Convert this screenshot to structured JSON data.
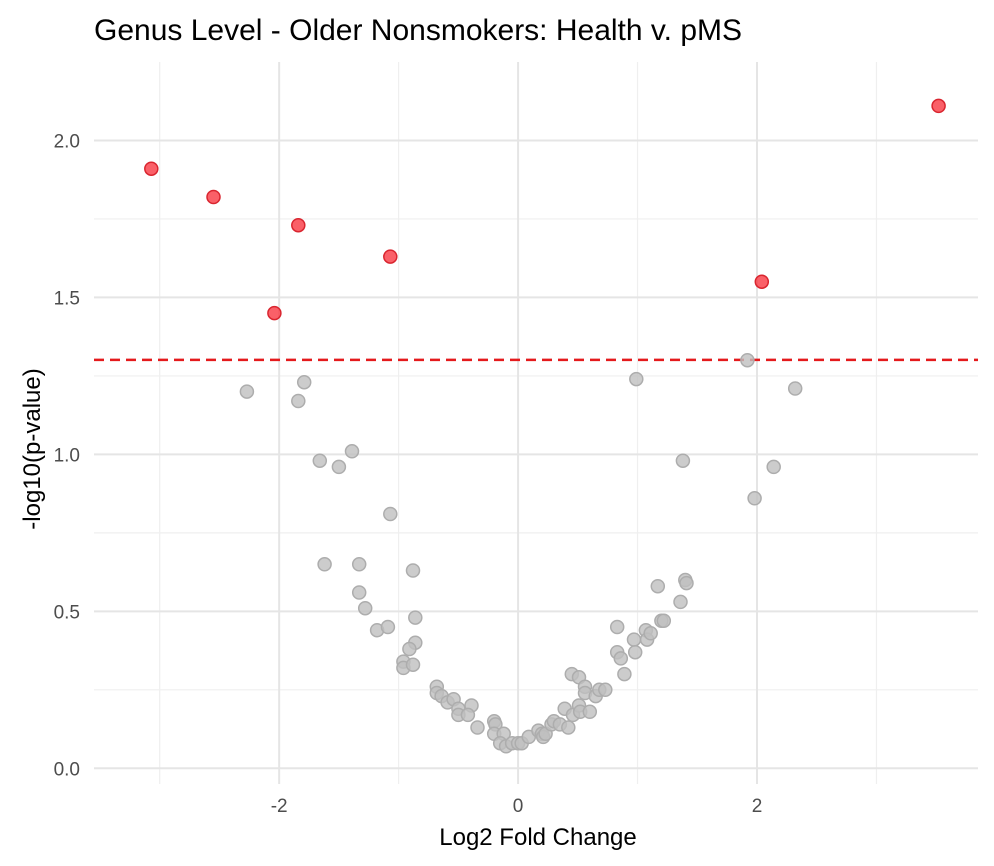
{
  "chart_data": {
    "type": "scatter",
    "title": "Genus Level - Older Nonsmokers: Health v. pMS",
    "xlabel": "Log2 Fold Change",
    "ylabel": "-log10(p-value)",
    "xlim": [
      -3.55,
      3.85
    ],
    "ylim": [
      -0.05,
      2.25
    ],
    "x_ticks": [
      -2,
      0,
      2
    ],
    "x_tick_labels": [
      "-2",
      "0",
      "2"
    ],
    "x_minor": [
      -3,
      -1,
      1,
      3
    ],
    "y_ticks": [
      0.0,
      0.5,
      1.0,
      1.5,
      2.0
    ],
    "y_tick_labels": [
      "0.0",
      "0.5",
      "1.0",
      "1.5",
      "2.0"
    ],
    "y_minor": [
      0.25,
      0.75,
      1.25,
      1.75
    ],
    "grid": true,
    "threshold": {
      "y": 1.301,
      "color": "#e41a1c",
      "style": "dashed"
    },
    "colors": {
      "significant": "#f8333d",
      "significant_stroke": "#d9252f",
      "nonsignificant": "#bfbfbf",
      "nonsignificant_stroke": "#adadad"
    },
    "series": [
      {
        "color": "#f8333d",
        "points": [
          [
            -3.07,
            1.91
          ],
          [
            -2.55,
            1.82
          ],
          [
            -2.04,
            1.45
          ],
          [
            -1.84,
            1.73
          ],
          [
            -1.07,
            1.63
          ],
          [
            2.04,
            1.55
          ],
          [
            3.52,
            2.11
          ]
        ]
      },
      {
        "color": "#bfbfbf",
        "points": [
          [
            -2.27,
            1.2
          ],
          [
            -1.79,
            1.23
          ],
          [
            -1.84,
            1.17
          ],
          [
            -1.66,
            0.98
          ],
          [
            -1.39,
            1.01
          ],
          [
            -1.5,
            0.96
          ],
          [
            -1.07,
            0.81
          ],
          [
            -1.62,
            0.65
          ],
          [
            -1.33,
            0.65
          ],
          [
            -1.33,
            0.56
          ],
          [
            -0.88,
            0.63
          ],
          [
            -1.28,
            0.51
          ],
          [
            -0.86,
            0.48
          ],
          [
            -1.18,
            0.44
          ],
          [
            -1.09,
            0.45
          ],
          [
            -0.86,
            0.4
          ],
          [
            -0.91,
            0.38
          ],
          [
            -0.96,
            0.34
          ],
          [
            -0.96,
            0.32
          ],
          [
            -0.88,
            0.33
          ],
          [
            -0.68,
            0.26
          ],
          [
            -0.68,
            0.24
          ],
          [
            -0.64,
            0.23
          ],
          [
            -0.59,
            0.21
          ],
          [
            -0.54,
            0.22
          ],
          [
            -0.5,
            0.19
          ],
          [
            -0.39,
            0.2
          ],
          [
            -0.5,
            0.17
          ],
          [
            -0.42,
            0.17
          ],
          [
            -0.34,
            0.13
          ],
          [
            -0.2,
            0.15
          ],
          [
            -0.19,
            0.14
          ],
          [
            -0.2,
            0.11
          ],
          [
            -0.12,
            0.11
          ],
          [
            -0.15,
            0.08
          ],
          [
            -0.1,
            0.07
          ],
          [
            -0.05,
            0.08
          ],
          [
            0.0,
            0.08
          ],
          [
            0.03,
            0.08
          ],
          [
            0.09,
            0.1
          ],
          [
            0.17,
            0.12
          ],
          [
            0.2,
            0.11
          ],
          [
            0.21,
            0.1
          ],
          [
            0.23,
            0.11
          ],
          [
            0.28,
            0.14
          ],
          [
            0.3,
            0.15
          ],
          [
            0.35,
            0.14
          ],
          [
            0.39,
            0.19
          ],
          [
            0.42,
            0.13
          ],
          [
            0.45,
            0.3
          ],
          [
            0.46,
            0.17
          ],
          [
            0.51,
            0.29
          ],
          [
            0.51,
            0.2
          ],
          [
            0.52,
            0.18
          ],
          [
            0.56,
            0.26
          ],
          [
            0.56,
            0.24
          ],
          [
            0.6,
            0.18
          ],
          [
            0.65,
            0.23
          ],
          [
            0.68,
            0.25
          ],
          [
            0.73,
            0.25
          ],
          [
            0.83,
            0.37
          ],
          [
            0.83,
            0.45
          ],
          [
            0.86,
            0.35
          ],
          [
            0.89,
            0.3
          ],
          [
            0.97,
            0.41
          ],
          [
            0.98,
            0.37
          ],
          [
            0.99,
            1.24
          ],
          [
            1.07,
            0.44
          ],
          [
            1.08,
            0.41
          ],
          [
            1.11,
            0.43
          ],
          [
            1.17,
            0.58
          ],
          [
            1.2,
            0.47
          ],
          [
            1.22,
            0.47
          ],
          [
            1.36,
            0.53
          ],
          [
            1.38,
            0.98
          ],
          [
            1.4,
            0.6
          ],
          [
            1.41,
            0.59
          ],
          [
            1.92,
            1.3
          ],
          [
            1.98,
            0.86
          ],
          [
            2.14,
            0.96
          ],
          [
            2.32,
            1.21
          ]
        ]
      }
    ]
  }
}
